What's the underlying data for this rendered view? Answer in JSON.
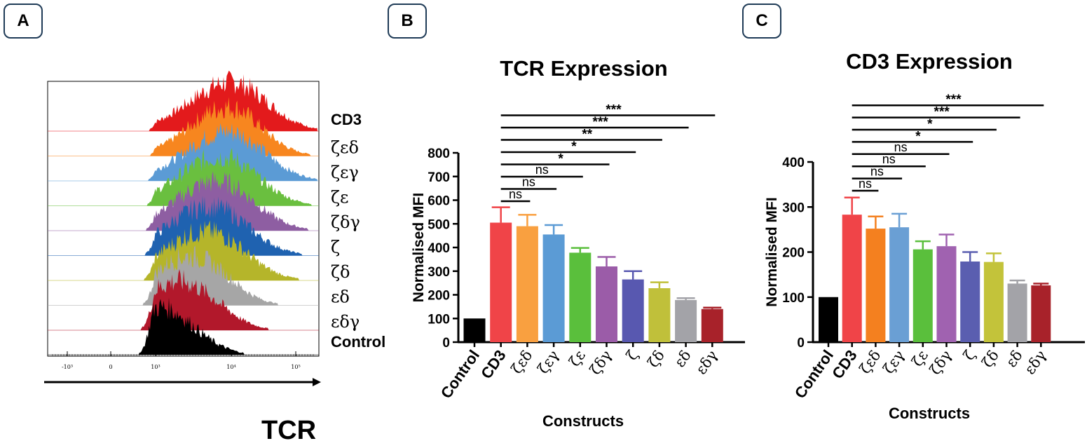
{
  "panels": {
    "a": "A",
    "b": "B",
    "c": "C"
  },
  "chart_data": [
    {
      "type": "histogram-overlay",
      "panel": "A",
      "xlabel": "TCR",
      "xticks": [
        "-10³",
        "0",
        "10³",
        "10⁴",
        "10⁵"
      ],
      "x_log_exponents": [
        -3,
        0,
        3,
        4,
        5
      ],
      "tracks": [
        {
          "name": "CD3",
          "color": "#e31a1c",
          "peak_log": 4.0,
          "spread": 0.55
        },
        {
          "name": "ζεδ",
          "color": "#f7861f",
          "peak_log": 3.95,
          "spread": 0.5
        },
        {
          "name": "ζεγ",
          "color": "#5b9bd5",
          "peak_log": 3.95,
          "spread": 0.55
        },
        {
          "name": "ζε",
          "color": "#6abf3f",
          "peak_log": 3.85,
          "spread": 0.55
        },
        {
          "name": "ζδγ",
          "color": "#8e5ea2",
          "peak_log": 3.8,
          "spread": 0.55
        },
        {
          "name": "ζ",
          "color": "#1f62b0",
          "peak_log": 3.7,
          "spread": 0.55
        },
        {
          "name": "ζδ",
          "color": "#b5b52a",
          "peak_log": 3.65,
          "spread": 0.55
        },
        {
          "name": "εδ",
          "color": "#a6a6a6",
          "peak_log": 3.45,
          "spread": 0.5
        },
        {
          "name": "εδγ",
          "color": "#b2182b",
          "peak_log": 3.3,
          "spread": 0.5
        },
        {
          "name": "Control",
          "color": "#000000",
          "peak_log": 3.05,
          "spread": 0.45
        }
      ]
    },
    {
      "type": "bar",
      "panel": "B",
      "title": "TCR Expression",
      "xlabel": "Constructs",
      "ylabel": "Normalised MFI",
      "ylim": [
        0,
        800
      ],
      "yticks": [
        0,
        100,
        200,
        300,
        400,
        500,
        600,
        700,
        800
      ],
      "categories": [
        "Control",
        "CD3",
        "ζεδ",
        "ζεγ",
        "ζε",
        "ζδγ",
        "ζ",
        "ζδ",
        "εδ",
        "εδγ"
      ],
      "values": [
        100,
        505,
        490,
        455,
        378,
        320,
        265,
        228,
        178,
        140
      ],
      "errors": [
        0,
        65,
        48,
        40,
        20,
        40,
        35,
        25,
        8,
        6
      ],
      "colors": [
        "#000000",
        "#f04448",
        "#f9a040",
        "#5b9bd5",
        "#5abf3c",
        "#9b5ca8",
        "#5858b0",
        "#c0c03a",
        "#a3a3a8",
        "#a8222a"
      ],
      "significance": [
        {
          "to": "ζεδ",
          "label": "ns",
          "bold": false
        },
        {
          "to": "ζεγ",
          "label": "ns",
          "bold": false
        },
        {
          "to": "ζε",
          "label": "ns",
          "bold": false
        },
        {
          "to": "ζδγ",
          "label": "*",
          "bold": true
        },
        {
          "to": "ζ",
          "label": "*",
          "bold": true
        },
        {
          "to": "ζδ",
          "label": "**",
          "bold": true
        },
        {
          "to": "εδ",
          "label": "***",
          "bold": true
        },
        {
          "to": "εδγ",
          "label": "***",
          "bold": true
        }
      ]
    },
    {
      "type": "bar",
      "panel": "C",
      "title": "CD3 Expression",
      "xlabel": "Constructs",
      "ylabel": "Normalised MFI",
      "ylim": [
        0,
        400
      ],
      "yticks": [
        0,
        100,
        200,
        300,
        400
      ],
      "categories": [
        "Control",
        "CD3",
        "ζεδ",
        "ζεγ",
        "ζε",
        "ζδγ",
        "ζ",
        "ζδ",
        "εδ",
        "εδγ"
      ],
      "values": [
        100,
        283,
        252,
        255,
        206,
        213,
        179,
        178,
        130,
        126
      ],
      "errors": [
        0,
        38,
        27,
        30,
        18,
        26,
        21,
        19,
        7,
        4
      ],
      "colors": [
        "#000000",
        "#f04448",
        "#f4801f",
        "#6a9fd4",
        "#5abf3c",
        "#a062b0",
        "#5a5eb0",
        "#c3c33a",
        "#a3a3a8",
        "#a8222a"
      ],
      "significance": [
        {
          "to": "ζεδ",
          "label": "ns",
          "bold": false
        },
        {
          "to": "ζεγ",
          "label": "ns",
          "bold": false
        },
        {
          "to": "ζε",
          "label": "ns",
          "bold": false
        },
        {
          "to": "ζδγ",
          "label": "ns",
          "bold": false
        },
        {
          "to": "ζ",
          "label": "*",
          "bold": true
        },
        {
          "to": "ζδ",
          "label": "*",
          "bold": true
        },
        {
          "to": "εδ",
          "label": "***",
          "bold": true
        },
        {
          "to": "εδγ",
          "label": "***",
          "bold": true
        }
      ]
    }
  ]
}
